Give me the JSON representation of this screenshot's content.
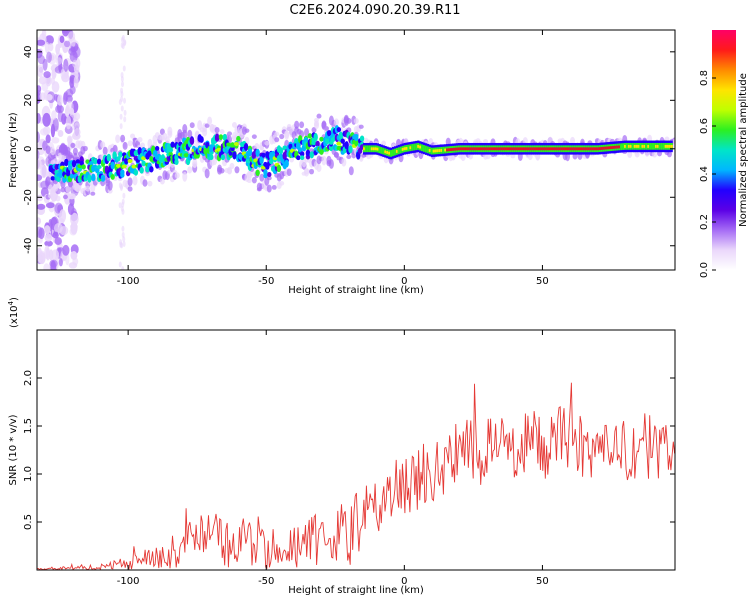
{
  "title": "C2E6.2024.090.20.39.R11",
  "colors": {
    "snr_line": "#e53935",
    "spectrum_ridge": "#e8102a",
    "background": "#ffffff",
    "colormap": [
      "#ffffff",
      "#ead7fb",
      "#a56bf5",
      "#5b00e6",
      "#2200ff",
      "#00b7ff",
      "#00e5c8",
      "#2cf021",
      "#bfff00",
      "#ffe400",
      "#ff8a00",
      "#ff1a1a",
      "#ff0066"
    ]
  },
  "chart_data": [
    {
      "type": "heatmap",
      "xlabel": "Height of straight line (km)",
      "ylabel": "Frequency (Hz)",
      "xlim": [
        -133,
        98
      ],
      "ylim": [
        -50,
        49
      ],
      "xticks": [
        -100,
        -50,
        0,
        50
      ],
      "yticks": [
        -40,
        -20,
        0,
        20,
        40
      ],
      "grid": false,
      "colorbar": {
        "label": "Normalized spectral amplitude",
        "range": [
          0.0,
          1.0
        ],
        "ticks": [
          "0.0",
          "0.2",
          "0.4",
          "0.6",
          "0.8"
        ],
        "position": "right"
      },
      "ridge": {
        "description_points": {
          "x": [
            -128,
            -120,
            -110,
            -100,
            -90,
            -80,
            -70,
            -60,
            -55,
            -50,
            -45,
            -40,
            -35,
            -30,
            -25,
            -20,
            -15,
            -10,
            -5,
            0,
            5,
            10,
            20,
            30,
            40,
            50,
            60,
            70,
            80,
            90,
            98
          ],
          "y": [
            -10,
            -9,
            -8,
            -6,
            -4,
            -1,
            1,
            0,
            -5,
            -7,
            -4,
            -1,
            1,
            3,
            4,
            2,
            0,
            0,
            -2,
            0,
            1,
            -1,
            0,
            0,
            0,
            0,
            0,
            0,
            1,
            1,
            1
          ]
        }
      }
    },
    {
      "type": "line",
      "xlabel": "Height of straight line (km)",
      "ylabel": "SNR (10 * v/v)",
      "y_multiplier": "(x10^4)",
      "xlim": [
        -133,
        98
      ],
      "ylim": [
        0,
        2.5
      ],
      "xticks": [
        -100,
        -50,
        0,
        50
      ],
      "yticks": [
        0.5,
        1.0,
        1.5,
        2.0
      ],
      "series": [
        {
          "x": [
            -133,
            -128,
            -123,
            -118,
            -113,
            -108,
            -103,
            -98,
            -93,
            -88,
            -83,
            -78,
            -73,
            -68,
            -63,
            -58,
            -53,
            -48,
            -43,
            -38,
            -33,
            -28,
            -23,
            -18,
            -13,
            -8,
            -3,
            2,
            7,
            12,
            17,
            22,
            27,
            32,
            37,
            42,
            47,
            52,
            57,
            62,
            67,
            72,
            77,
            82,
            87,
            92,
            97
          ],
          "y": [
            0.01,
            0.01,
            0.02,
            0.02,
            0.03,
            0.04,
            0.06,
            0.09,
            0.12,
            0.17,
            0.2,
            0.28,
            0.3,
            0.31,
            0.27,
            0.3,
            0.25,
            0.22,
            0.24,
            0.27,
            0.3,
            0.3,
            0.36,
            0.4,
            0.62,
            0.7,
            0.82,
            0.9,
            1.0,
            1.05,
            1.15,
            1.3,
            1.2,
            1.35,
            1.25,
            1.3,
            1.35,
            1.25,
            1.45,
            1.3,
            1.25,
            1.2,
            1.35,
            1.15,
            1.3,
            1.25,
            1.2
          ]
        }
      ]
    }
  ]
}
